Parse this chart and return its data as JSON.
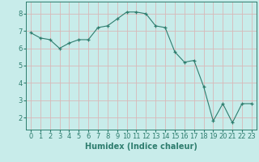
{
  "x": [
    0,
    1,
    2,
    3,
    4,
    5,
    6,
    7,
    8,
    9,
    10,
    11,
    12,
    13,
    14,
    15,
    16,
    17,
    18,
    19,
    20,
    21,
    22,
    23
  ],
  "y": [
    6.9,
    6.6,
    6.5,
    6.0,
    6.3,
    6.5,
    6.5,
    7.2,
    7.3,
    7.7,
    8.1,
    8.1,
    8.0,
    7.3,
    7.2,
    5.8,
    5.2,
    5.3,
    3.8,
    1.8,
    2.8,
    1.7,
    2.8,
    2.8
  ],
  "line_color": "#2e7d6e",
  "marker": "+",
  "marker_size": 3,
  "bg_color": "#c8ecea",
  "grid_color_major": "#d8b8b8",
  "grid_color_minor": "#d0c8c8",
  "xlabel": "Humidex (Indice chaleur)",
  "xlabel_fontsize": 7,
  "tick_fontsize": 6,
  "ylim": [
    1.3,
    8.7
  ],
  "xlim": [
    -0.5,
    23.5
  ],
  "yticks": [
    2,
    3,
    4,
    5,
    6,
    7,
    8
  ],
  "xticks": [
    0,
    1,
    2,
    3,
    4,
    5,
    6,
    7,
    8,
    9,
    10,
    11,
    12,
    13,
    14,
    15,
    16,
    17,
    18,
    19,
    20,
    21,
    22,
    23
  ]
}
